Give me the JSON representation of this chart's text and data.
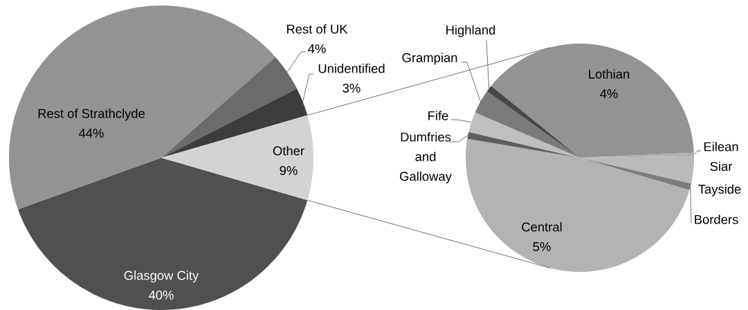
{
  "chart_data": [
    {
      "type": "pie",
      "categories": [
        "Glasgow City",
        "Rest of Strathclyde",
        "Rest of UK",
        "Unidentified",
        "Other"
      ],
      "values": [
        40,
        44,
        4,
        3,
        9
      ],
      "colors": [
        "#505050",
        "#939393",
        "#6b6b6b",
        "#3d3d3d",
        "#d3d3d3"
      ],
      "value_labels": [
        "40%",
        "44%",
        "4%",
        "3%",
        "9%"
      ]
    },
    {
      "type": "pie",
      "categories": [
        "Lothian",
        "Eilean Siar",
        "Tayside",
        "Borders",
        "Central",
        "Dumfries and Galloway",
        "Fife",
        "Grampian",
        "Highland"
      ],
      "values": [
        4,
        0.05,
        0.4,
        0.1,
        5,
        0.1,
        0.3,
        0.35,
        0.1
      ],
      "colors": [
        "#939393",
        "#b0b0b0",
        "#bababa",
        "#7c7c7c",
        "#b3b3b3",
        "#5e5e5e",
        "#bfbfbf",
        "#7b7b7b",
        "#474747"
      ],
      "value_labels": [
        "4%",
        null,
        null,
        null,
        "5%",
        null,
        null,
        null,
        null
      ]
    }
  ]
}
